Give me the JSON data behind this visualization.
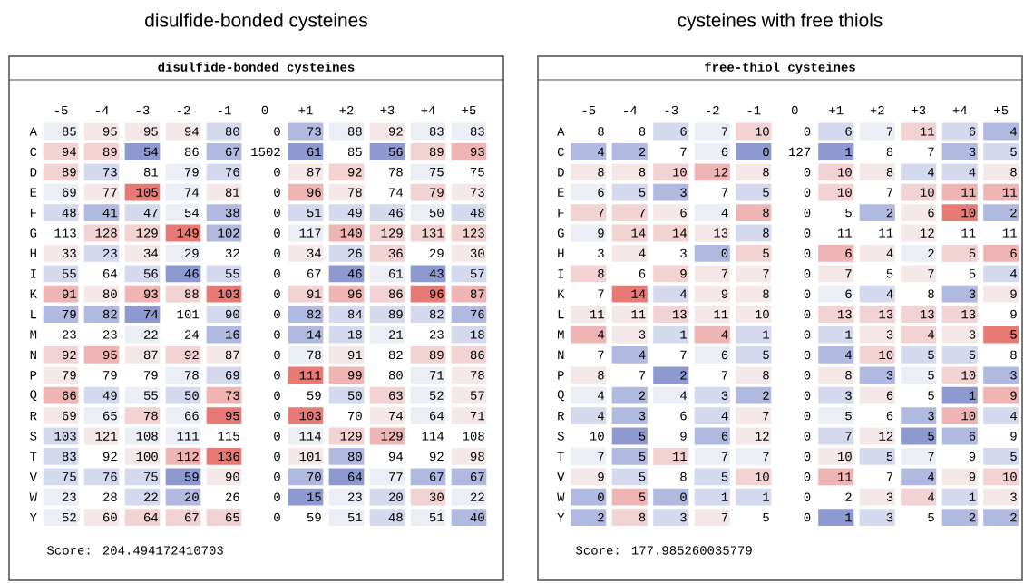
{
  "chart_data": [
    {
      "type": "heatmap",
      "title": "disulfide-bonded cysteines",
      "subtitle": "disulfide-bonded cysteines",
      "data_labels": true,
      "categories": [
        "-5",
        "-4",
        "-3",
        "-2",
        "-1",
        "0",
        "+1",
        "+2",
        "+3",
        "+4",
        "+5"
      ],
      "y_categories": [
        "A",
        "C",
        "D",
        "E",
        "F",
        "G",
        "H",
        "I",
        "K",
        "L",
        "M",
        "N",
        "P",
        "Q",
        "R",
        "S",
        "T",
        "V",
        "W",
        "Y"
      ],
      "cells": [
        [
          85,
          95,
          95,
          94,
          80,
          0,
          73,
          88,
          92,
          83,
          83
        ],
        [
          94,
          89,
          54,
          86,
          67,
          1502,
          61,
          85,
          56,
          89,
          93
        ],
        [
          89,
          73,
          81,
          79,
          76,
          0,
          87,
          92,
          78,
          75,
          75
        ],
        [
          69,
          77,
          105,
          74,
          81,
          0,
          96,
          78,
          74,
          79,
          73
        ],
        [
          48,
          41,
          47,
          54,
          38,
          0,
          51,
          49,
          46,
          50,
          48
        ],
        [
          113,
          128,
          129,
          149,
          102,
          0,
          117,
          140,
          129,
          131,
          123
        ],
        [
          33,
          23,
          34,
          29,
          32,
          0,
          34,
          26,
          36,
          29,
          30
        ],
        [
          55,
          64,
          56,
          46,
          55,
          0,
          67,
          46,
          61,
          43,
          57
        ],
        [
          91,
          80,
          93,
          88,
          103,
          0,
          91,
          96,
          86,
          96,
          87
        ],
        [
          79,
          82,
          74,
          101,
          90,
          0,
          82,
          84,
          89,
          82,
          76
        ],
        [
          23,
          23,
          22,
          24,
          16,
          0,
          14,
          18,
          21,
          23,
          18
        ],
        [
          92,
          95,
          87,
          92,
          87,
          0,
          78,
          91,
          82,
          89,
          86
        ],
        [
          79,
          79,
          79,
          78,
          69,
          0,
          111,
          99,
          80,
          71,
          78
        ],
        [
          66,
          49,
          55,
          50,
          73,
          0,
          59,
          50,
          63,
          52,
          57
        ],
        [
          69,
          65,
          78,
          66,
          95,
          0,
          103,
          70,
          74,
          64,
          71
        ],
        [
          103,
          121,
          108,
          111,
          115,
          0,
          114,
          129,
          129,
          114,
          108
        ],
        [
          83,
          92,
          100,
          112,
          136,
          0,
          101,
          80,
          94,
          92,
          98
        ],
        [
          75,
          76,
          75,
          59,
          90,
          0,
          70,
          64,
          77,
          67,
          67
        ],
        [
          23,
          28,
          22,
          20,
          26,
          0,
          15,
          23,
          20,
          30,
          22
        ],
        [
          52,
          60,
          64,
          67,
          65,
          0,
          59,
          51,
          48,
          51,
          40
        ]
      ],
      "colors": [
        [
          "#eceef5",
          "#f5e8e8",
          "#f5e8e8",
          "#f5e8e8",
          "#d5d9ee",
          "#ffffff",
          "#b1b9e0",
          "#eceef5",
          "#f5e8e8",
          "#eceef5",
          "#eceef5"
        ],
        [
          "#f2d2d2",
          "#f2d2d2",
          "#8e99d0",
          "#ffffff",
          "#b1b9e0",
          "#ffffff",
          "#8e99d0",
          "#ffffff",
          "#8e99d0",
          "#f2d2d2",
          "#efb4b4"
        ],
        [
          "#f2d2d2",
          "#d5d9ee",
          "#ffffff",
          "#eceef5",
          "#d5d9ee",
          "#ffffff",
          "#f5e8e8",
          "#f2d2d2",
          "#ffffff",
          "#eceef5",
          "#ffffff"
        ],
        [
          "#eceef5",
          "#f5e8e8",
          "#e87a76",
          "#eceef5",
          "#f5e8e8",
          "#ffffff",
          "#efb4b4",
          "#f5e8e8",
          "#ffffff",
          "#f2d2d2",
          "#f5e8e8"
        ],
        [
          "#d5d9ee",
          "#b1b9e0",
          "#d5d9ee",
          "#eceef5",
          "#b1b9e0",
          "#ffffff",
          "#d5d9ee",
          "#d5d9ee",
          "#d5d9ee",
          "#eceef5",
          "#d5d9ee"
        ],
        [
          "#ffffff",
          "#f2d2d2",
          "#f2d2d2",
          "#e87a76",
          "#b1b9e0",
          "#ffffff",
          "#eceef5",
          "#efb4b4",
          "#f2d2d2",
          "#f2d2d2",
          "#f2d2d2"
        ],
        [
          "#f5e8e8",
          "#d5d9ee",
          "#f5e8e8",
          "#eceef5",
          "#ffffff",
          "#ffffff",
          "#f5e8e8",
          "#d5d9ee",
          "#f2d2d2",
          "#ffffff",
          "#f5e8e8"
        ],
        [
          "#d5d9ee",
          "#ffffff",
          "#d5d9ee",
          "#8e99d0",
          "#d5d9ee",
          "#ffffff",
          "#ffffff",
          "#8e99d0",
          "#eceef5",
          "#8e99d0",
          "#d5d9ee"
        ],
        [
          "#efb4b4",
          "#f5e8e8",
          "#efb4b4",
          "#f2d2d2",
          "#e87a76",
          "#ffffff",
          "#f2d2d2",
          "#efb4b4",
          "#f2d2d2",
          "#e87a76",
          "#efb4b4"
        ],
        [
          "#b1b9e0",
          "#b1b9e0",
          "#8e99d0",
          "#ffffff",
          "#d5d9ee",
          "#ffffff",
          "#b1b9e0",
          "#d5d9ee",
          "#d5d9ee",
          "#d5d9ee",
          "#b1b9e0"
        ],
        [
          "#ffffff",
          "#ffffff",
          "#eceef5",
          "#ffffff",
          "#b1b9e0",
          "#ffffff",
          "#b1b9e0",
          "#d5d9ee",
          "#eceef5",
          "#ffffff",
          "#d5d9ee"
        ],
        [
          "#f2d2d2",
          "#efb4b4",
          "#f5e8e8",
          "#f2d2d2",
          "#f5e8e8",
          "#ffffff",
          "#eceef5",
          "#f5e8e8",
          "#ffffff",
          "#f2d2d2",
          "#f2d2d2"
        ],
        [
          "#f5e8e8",
          "#ffffff",
          "#ffffff",
          "#eceef5",
          "#d5d9ee",
          "#ffffff",
          "#e87a76",
          "#efb4b4",
          "#ffffff",
          "#eceef5",
          "#f5e8e8"
        ],
        [
          "#efb4b4",
          "#d5d9ee",
          "#eceef5",
          "#d5d9ee",
          "#efb4b4",
          "#ffffff",
          "#ffffff",
          "#d5d9ee",
          "#f2d2d2",
          "#eceef5",
          "#f5e8e8"
        ],
        [
          "#f5e8e8",
          "#eceef5",
          "#f2d2d2",
          "#eceef5",
          "#e87a76",
          "#ffffff",
          "#e87a76",
          "#ffffff",
          "#f5e8e8",
          "#eceef5",
          "#f5e8e8"
        ],
        [
          "#d5d9ee",
          "#f5e8e8",
          "#eceef5",
          "#eceef5",
          "#ffffff",
          "#ffffff",
          "#eceef5",
          "#f2d2d2",
          "#efb4b4",
          "#ffffff",
          "#ffffff"
        ],
        [
          "#d5d9ee",
          "#ffffff",
          "#f5e8e8",
          "#efb4b4",
          "#e87a76",
          "#ffffff",
          "#f5e8e8",
          "#b1b9e0",
          "#ffffff",
          "#ffffff",
          "#f5e8e8"
        ],
        [
          "#d5d9ee",
          "#d5d9ee",
          "#d5d9ee",
          "#8e99d0",
          "#f5e8e8",
          "#ffffff",
          "#b1b9e0",
          "#8e99d0",
          "#eceef5",
          "#b1b9e0",
          "#b1b9e0"
        ],
        [
          "#eceef5",
          "#ffffff",
          "#d5d9ee",
          "#b1b9e0",
          "#ffffff",
          "#ffffff",
          "#8e99d0",
          "#eceef5",
          "#d5d9ee",
          "#f2d2d2",
          "#eceef5"
        ],
        [
          "#eceef5",
          "#f5e8e8",
          "#f2d2d2",
          "#f2d2d2",
          "#f2d2d2",
          "#ffffff",
          "#ffffff",
          "#eceef5",
          "#d5d9ee",
          "#eceef5",
          "#b1b9e0"
        ]
      ],
      "annotations": [
        "Score: 204.494172410703"
      ]
    },
    {
      "type": "heatmap",
      "title": "cysteines with free thiols",
      "subtitle": "free-thiol cysteines",
      "data_labels": true,
      "categories": [
        "-5",
        "-4",
        "-3",
        "-2",
        "-1",
        "0",
        "+1",
        "+2",
        "+3",
        "+4",
        "+5"
      ],
      "y_categories": [
        "A",
        "C",
        "D",
        "E",
        "F",
        "G",
        "H",
        "I",
        "K",
        "L",
        "M",
        "N",
        "P",
        "Q",
        "R",
        "S",
        "T",
        "V",
        "W",
        "Y"
      ],
      "cells": [
        [
          8,
          8,
          6,
          7,
          10,
          0,
          6,
          7,
          11,
          6,
          4
        ],
        [
          4,
          2,
          7,
          6,
          0,
          127,
          1,
          8,
          7,
          3,
          5
        ],
        [
          8,
          8,
          10,
          12,
          8,
          0,
          10,
          8,
          4,
          4,
          8
        ],
        [
          6,
          5,
          3,
          7,
          5,
          0,
          10,
          7,
          10,
          11,
          11
        ],
        [
          7,
          7,
          6,
          4,
          8,
          0,
          5,
          2,
          6,
          10,
          2
        ],
        [
          9,
          14,
          14,
          13,
          8,
          0,
          11,
          11,
          12,
          11,
          11
        ],
        [
          3,
          4,
          3,
          0,
          5,
          0,
          6,
          4,
          2,
          5,
          6
        ],
        [
          8,
          6,
          9,
          7,
          7,
          0,
          7,
          5,
          7,
          5,
          4
        ],
        [
          7,
          14,
          4,
          9,
          8,
          0,
          6,
          4,
          8,
          3,
          9
        ],
        [
          11,
          11,
          13,
          11,
          10,
          0,
          13,
          13,
          13,
          13,
          9
        ],
        [
          4,
          3,
          1,
          4,
          1,
          0,
          1,
          3,
          4,
          3,
          5
        ],
        [
          7,
          4,
          7,
          6,
          5,
          0,
          4,
          10,
          5,
          5,
          8
        ],
        [
          8,
          7,
          2,
          7,
          8,
          0,
          8,
          3,
          5,
          10,
          3
        ],
        [
          4,
          2,
          4,
          3,
          2,
          0,
          3,
          6,
          5,
          1,
          9
        ],
        [
          4,
          3,
          6,
          4,
          7,
          0,
          5,
          6,
          3,
          10,
          4
        ],
        [
          10,
          5,
          9,
          6,
          12,
          0,
          7,
          12,
          5,
          6,
          9
        ],
        [
          7,
          5,
          11,
          7,
          7,
          0,
          10,
          5,
          7,
          9,
          5
        ],
        [
          9,
          5,
          8,
          5,
          10,
          0,
          11,
          7,
          4,
          9,
          10
        ],
        [
          0,
          5,
          0,
          1,
          1,
          0,
          2,
          3,
          4,
          1,
          3
        ],
        [
          2,
          8,
          3,
          7,
          5,
          0,
          1,
          3,
          5,
          2,
          2
        ]
      ],
      "colors": [
        [
          "#ffffff",
          "#ffffff",
          "#d5d9ee",
          "#eceef5",
          "#f2d2d2",
          "#ffffff",
          "#d5d9ee",
          "#eceef5",
          "#f2d2d2",
          "#d5d9ee",
          "#b1b9e0"
        ],
        [
          "#b1b9e0",
          "#b1b9e0",
          "#ffffff",
          "#eceef5",
          "#8e99d0",
          "#ffffff",
          "#8e99d0",
          "#ffffff",
          "#ffffff",
          "#b1b9e0",
          "#d5d9ee"
        ],
        [
          "#f5e8e8",
          "#f5e8e8",
          "#f2d2d2",
          "#efb4b4",
          "#f5e8e8",
          "#ffffff",
          "#f2d2d2",
          "#f5e8e8",
          "#d5d9ee",
          "#d5d9ee",
          "#f5e8e8"
        ],
        [
          "#eceef5",
          "#d5d9ee",
          "#b1b9e0",
          "#ffffff",
          "#d5d9ee",
          "#ffffff",
          "#f2d2d2",
          "#ffffff",
          "#f2d2d2",
          "#efb4b4",
          "#efb4b4"
        ],
        [
          "#f2d2d2",
          "#f2d2d2",
          "#f5e8e8",
          "#eceef5",
          "#efb4b4",
          "#ffffff",
          "#ffffff",
          "#b1b9e0",
          "#f5e8e8",
          "#e87a76",
          "#b1b9e0"
        ],
        [
          "#eceef5",
          "#f2d2d2",
          "#f2d2d2",
          "#f5e8e8",
          "#d5d9ee",
          "#ffffff",
          "#ffffff",
          "#ffffff",
          "#f5e8e8",
          "#ffffff",
          "#ffffff"
        ],
        [
          "#ffffff",
          "#f5e8e8",
          "#ffffff",
          "#b1b9e0",
          "#f2d2d2",
          "#ffffff",
          "#efb4b4",
          "#f5e8e8",
          "#eceef5",
          "#f2d2d2",
          "#efb4b4"
        ],
        [
          "#f2d2d2",
          "#ffffff",
          "#f2d2d2",
          "#f5e8e8",
          "#f5e8e8",
          "#ffffff",
          "#f5e8e8",
          "#ffffff",
          "#f5e8e8",
          "#ffffff",
          "#d5d9ee"
        ],
        [
          "#ffffff",
          "#e87a76",
          "#d5d9ee",
          "#f5e8e8",
          "#f5e8e8",
          "#ffffff",
          "#eceef5",
          "#d5d9ee",
          "#ffffff",
          "#b1b9e0",
          "#f5e8e8"
        ],
        [
          "#f5e8e8",
          "#f5e8e8",
          "#f2d2d2",
          "#f5e8e8",
          "#f5e8e8",
          "#ffffff",
          "#f2d2d2",
          "#f2d2d2",
          "#f2d2d2",
          "#f2d2d2",
          "#ffffff"
        ],
        [
          "#efb4b4",
          "#f5e8e8",
          "#d5d9ee",
          "#efb4b4",
          "#d5d9ee",
          "#ffffff",
          "#d5d9ee",
          "#f5e8e8",
          "#f2d2d2",
          "#f5e8e8",
          "#e87a76"
        ],
        [
          "#ffffff",
          "#b1b9e0",
          "#ffffff",
          "#eceef5",
          "#d5d9ee",
          "#ffffff",
          "#b1b9e0",
          "#f2d2d2",
          "#d5d9ee",
          "#d5d9ee",
          "#ffffff"
        ],
        [
          "#f5e8e8",
          "#ffffff",
          "#8e99d0",
          "#ffffff",
          "#f5e8e8",
          "#ffffff",
          "#f5e8e8",
          "#b1b9e0",
          "#eceef5",
          "#f2d2d2",
          "#b1b9e0"
        ],
        [
          "#eceef5",
          "#b1b9e0",
          "#eceef5",
          "#d5d9ee",
          "#b1b9e0",
          "#ffffff",
          "#d5d9ee",
          "#f5e8e8",
          "#ffffff",
          "#8e99d0",
          "#efb4b4"
        ],
        [
          "#d5d9ee",
          "#b1b9e0",
          "#ffffff",
          "#d5d9ee",
          "#f5e8e8",
          "#ffffff",
          "#eceef5",
          "#ffffff",
          "#b1b9e0",
          "#efb4b4",
          "#d5d9ee"
        ],
        [
          "#ffffff",
          "#8e99d0",
          "#ffffff",
          "#b1b9e0",
          "#f5e8e8",
          "#ffffff",
          "#d5d9ee",
          "#f5e8e8",
          "#8e99d0",
          "#b1b9e0",
          "#ffffff"
        ],
        [
          "#eceef5",
          "#b1b9e0",
          "#f2d2d2",
          "#eceef5",
          "#eceef5",
          "#ffffff",
          "#f5e8e8",
          "#d5d9ee",
          "#eceef5",
          "#ffffff",
          "#d5d9ee"
        ],
        [
          "#f5e8e8",
          "#d5d9ee",
          "#ffffff",
          "#d5d9ee",
          "#f2d2d2",
          "#ffffff",
          "#efb4b4",
          "#ffffff",
          "#b1b9e0",
          "#f5e8e8",
          "#f2d2d2"
        ],
        [
          "#b1b9e0",
          "#efb4b4",
          "#b1b9e0",
          "#d5d9ee",
          "#d5d9ee",
          "#ffffff",
          "#ffffff",
          "#f5e8e8",
          "#f2d2d2",
          "#d5d9ee",
          "#f5e8e8"
        ],
        [
          "#b1b9e0",
          "#f2d2d2",
          "#d5d9ee",
          "#f5e8e8",
          "#ffffff",
          "#ffffff",
          "#8e99d0",
          "#d5d9ee",
          "#ffffff",
          "#b1b9e0",
          "#b1b9e0"
        ]
      ],
      "annotations": [
        "Score: 177.985260035779"
      ]
    }
  ]
}
